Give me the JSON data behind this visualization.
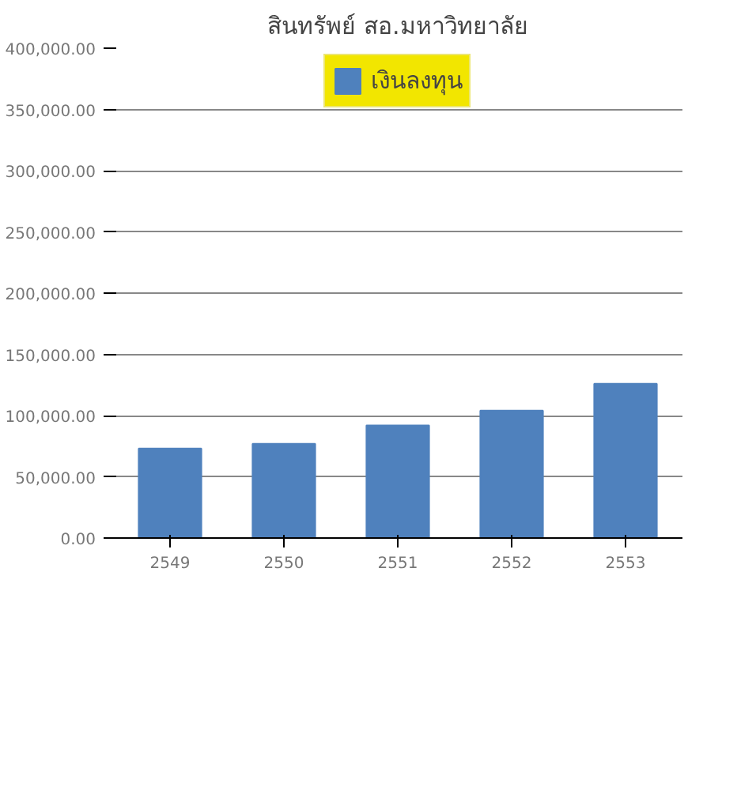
{
  "chart_data": {
    "type": "bar",
    "title": "สินทรัพย์ สอ.มหาวิทยาลัย",
    "categories": [
      "2549",
      "2550",
      "2551",
      "2552",
      "2553"
    ],
    "series": [
      {
        "name": "เงินลงทุน",
        "color": "#4f81bd",
        "values": [
          73000,
          77000,
          92000,
          104000,
          126000
        ]
      }
    ],
    "ylim": [
      0,
      400000
    ],
    "yticks": [
      {
        "value": 0,
        "label": "0.00"
      },
      {
        "value": 50000,
        "label": "50,000.00"
      },
      {
        "value": 100000,
        "label": "100,000.00"
      },
      {
        "value": 150000,
        "label": "150,000.00"
      },
      {
        "value": 200000,
        "label": "200,000.00"
      },
      {
        "value": 250000,
        "label": "250,000.00"
      },
      {
        "value": 300000,
        "label": "300,000.00"
      },
      {
        "value": 350000,
        "label": "350,000.00"
      },
      {
        "value": 400000,
        "label": "400,000.00"
      }
    ],
    "grid": "y",
    "legend": "top"
  }
}
